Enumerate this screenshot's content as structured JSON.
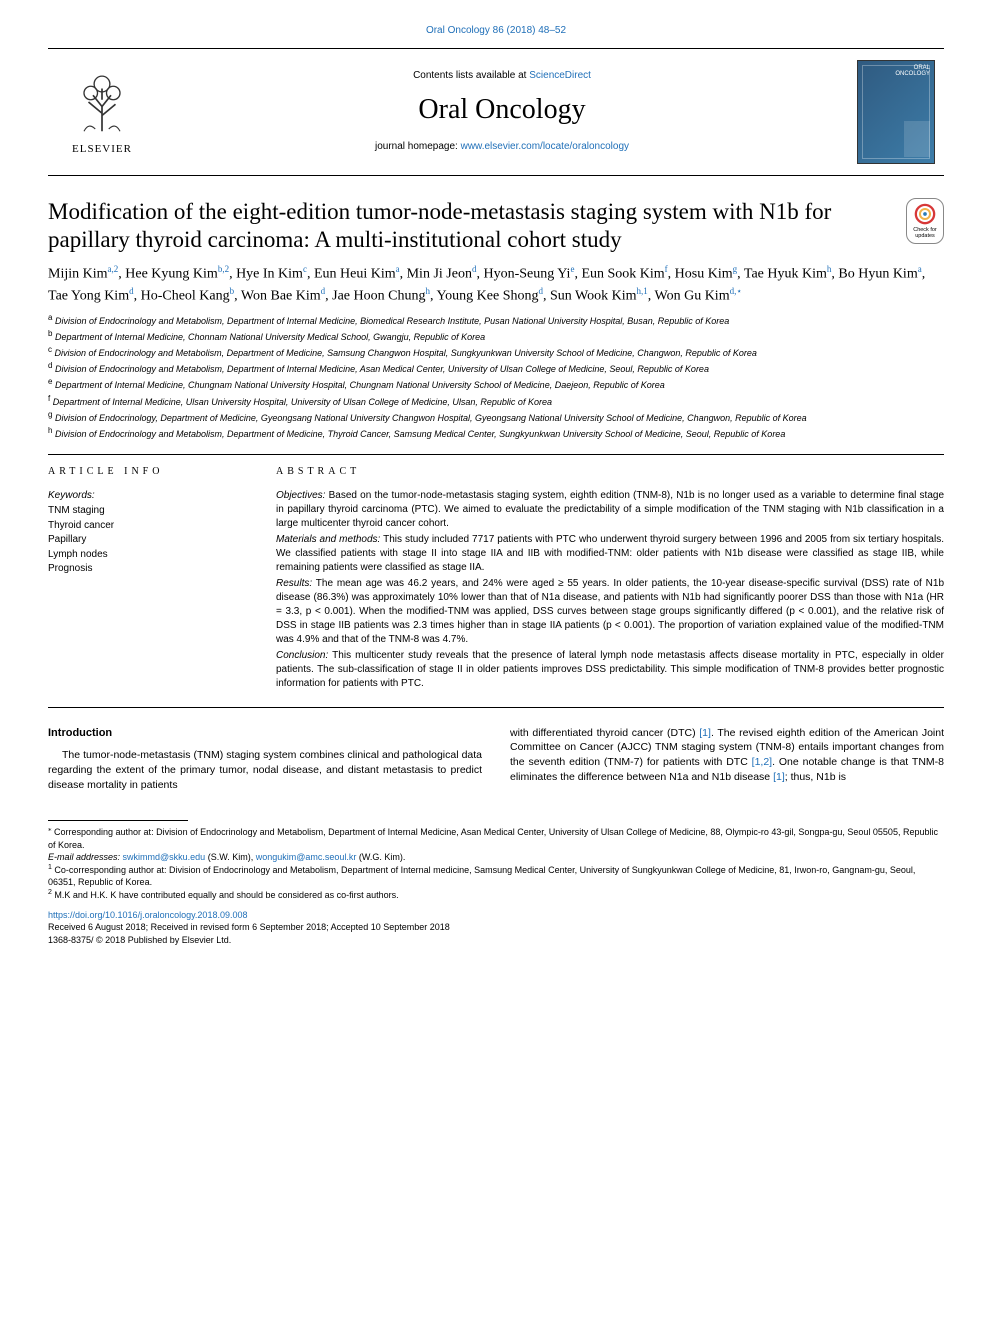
{
  "colors": {
    "link": "#1f6fb8",
    "text": "#000000",
    "background": "#ffffff",
    "cover_bg_from": "#2f5a80",
    "cover_bg_to": "#3d7da9"
  },
  "page_meta": {
    "citation": "Oral Oncology 86 (2018) 48–52"
  },
  "masthead": {
    "contents_prefix": "Contents lists available at ",
    "contents_link": "ScienceDirect",
    "journal_name": "Oral Oncology",
    "homepage_prefix": "journal homepage: ",
    "homepage_url": "www.elsevier.com/locate/oraloncology",
    "publisher_word": "ELSEVIER",
    "cover_title_top": "ORAL",
    "cover_title_bottom": "ONCOLOGY"
  },
  "crossmark": {
    "line1": "Check for",
    "line2": "updates"
  },
  "title": "Modification of the eight-edition tumor-node-metastasis staging system with N1b for papillary thyroid carcinoma: A multi-institutional cohort study",
  "authors_html": "Mijin Kim<sup>a,2</sup>, Hee Kyung Kim<sup>b,2</sup>, Hye In Kim<sup>c</sup>, Eun Heui Kim<sup>a</sup>, Min Ji Jeon<sup>d</sup>, Hyon-Seung Yi<sup>e</sup>, Eun Sook Kim<sup>f</sup>, Hosu Kim<sup>g</sup>, Tae Hyuk Kim<sup>h</sup>, Bo Hyun Kim<sup>a</sup>, Tae Yong Kim<sup>d</sup>, Ho-Cheol Kang<sup>b</sup>, Won Bae Kim<sup>d</sup>, Jae Hoon Chung<sup>h</sup>, Young Kee Shong<sup>d</sup>, Sun Wook Kim<sup>h,1</sup>, Won Gu Kim<sup>d,&#8902;</sup>",
  "affiliations": [
    {
      "sup": "a",
      "text": "Division of Endocrinology and Metabolism, Department of Internal Medicine, Biomedical Research Institute, Pusan National University Hospital, Busan, Republic of Korea"
    },
    {
      "sup": "b",
      "text": "Department of Internal Medicine, Chonnam National University Medical School, Gwangju, Republic of Korea"
    },
    {
      "sup": "c",
      "text": "Division of Endocrinology and Metabolism, Department of Medicine, Samsung Changwon Hospital, Sungkyunkwan University School of Medicine, Changwon, Republic of Korea"
    },
    {
      "sup": "d",
      "text": "Division of Endocrinology and Metabolism, Department of Internal Medicine, Asan Medical Center, University of Ulsan College of Medicine, Seoul, Republic of Korea"
    },
    {
      "sup": "e",
      "text": "Department of Internal Medicine, Chungnam National University Hospital, Chungnam National University School of Medicine, Daejeon, Republic of Korea"
    },
    {
      "sup": "f",
      "text": "Department of Internal Medicine, Ulsan University Hospital, University of Ulsan College of Medicine, Ulsan, Republic of Korea"
    },
    {
      "sup": "g",
      "text": "Division of Endocrinology, Department of Medicine, Gyeongsang National University Changwon Hospital, Gyeongsang National University School of Medicine, Changwon, Republic of Korea"
    },
    {
      "sup": "h",
      "text": "Division of Endocrinology and Metabolism, Department of Medicine, Thyroid Cancer, Samsung Medical Center, Sungkyunkwan University School of Medicine, Seoul, Republic of Korea"
    }
  ],
  "article_info": {
    "heading": "ARTICLE INFO",
    "keywords_label": "Keywords:",
    "keywords": [
      "TNM staging",
      "Thyroid cancer",
      "Papillary",
      "Lymph nodes",
      "Prognosis"
    ]
  },
  "abstract": {
    "heading": "ABSTRACT",
    "paragraphs": [
      {
        "label": "Objectives:",
        "text": " Based on the tumor-node-metastasis staging system, eighth edition (TNM-8), N1b is no longer used as a variable to determine final stage in papillary thyroid carcinoma (PTC). We aimed to evaluate the predictability of a simple modification of the TNM staging with N1b classification in a large multicenter thyroid cancer cohort."
      },
      {
        "label": "Materials and methods:",
        "text": " This study included 7717 patients with PTC who underwent thyroid surgery between 1996 and 2005 from six tertiary hospitals. We classified patients with stage II into stage IIA and IIB with modified-TNM: older patients with N1b disease were classified as stage IIB, while remaining patients were classified as stage IIA."
      },
      {
        "label": "Results:",
        "text": " The mean age was 46.2 years, and 24% were aged ≥ 55 years. In older patients, the 10-year disease-specific survival (DSS) rate of N1b disease (86.3%) was approximately 10% lower than that of N1a disease, and patients with N1b had significantly poorer DSS than those with N1a (HR = 3.3, p < 0.001). When the modified-TNM was applied, DSS curves between stage groups significantly differed (p < 0.001), and the relative risk of DSS in stage IIB patients was 2.3 times higher than in stage IIA patients (p < 0.001). The proportion of variation explained value of the modified-TNM was 4.9% and that of the TNM-8 was 4.7%."
      },
      {
        "label": "Conclusion:",
        "text": " This multicenter study reveals that the presence of lateral lymph node metastasis affects disease mortality in PTC, especially in older patients. The sub-classification of stage II in older patients improves DSS predictability. This simple modification of TNM-8 provides better prognostic information for patients with PTC."
      }
    ]
  },
  "introduction": {
    "heading": "Introduction",
    "left_para": "The tumor-node-metastasis (TNM) staging system combines clinical and pathological data regarding the extent of the primary tumor, nodal disease, and distant metastasis to predict disease mortality in patients",
    "right_para_prefix": "with differentiated thyroid cancer (DTC) ",
    "right_ref1": "[1]",
    "right_para_mid1": ". The revised eighth edition of the American Joint Committee on Cancer (AJCC) TNM staging system (TNM-8) entails important changes from the seventh edition (TNM-7) for patients with DTC ",
    "right_ref2": "[1,2]",
    "right_para_mid2": ". One notable change is that TNM-8 eliminates the difference between N1a and N1b disease ",
    "right_ref3": "[1]",
    "right_para_end": "; thus, N1b is"
  },
  "footnotes": {
    "corresponding_sup": "⁎",
    "corresponding_text": " Corresponding author at: Division of Endocrinology and Metabolism, Department of Internal Medicine, Asan Medical Center, University of Ulsan College of Medicine, 88, Olympic-ro 43-gil, Songpa-gu, Seoul 05505, Republic of Korea.",
    "email_label": "E-mail addresses: ",
    "email1": "swkimmd@skku.edu",
    "email1_name": " (S.W. Kim), ",
    "email2": "wongukim@amc.seoul.kr",
    "email2_name": " (W.G. Kim).",
    "note1_sup": "1",
    "note1": " Co-corresponding author at: Division of Endocrinology and Metabolism, Department of Internal medicine, Samsung Medical Center, University of Sungkyunkwan College of Medicine, 81, Irwon-ro, Gangnam-gu, Seoul, 06351, Republic of Korea.",
    "note2_sup": "2",
    "note2": " M.K and H.K. K have contributed equally and should be considered as co-first authors."
  },
  "footer": {
    "doi": "https://doi.org/10.1016/j.oraloncology.2018.09.008",
    "received": "Received 6 August 2018; Received in revised form 6 September 2018; Accepted 10 September 2018",
    "copyright": "1368-8375/ © 2018 Published by Elsevier Ltd."
  }
}
